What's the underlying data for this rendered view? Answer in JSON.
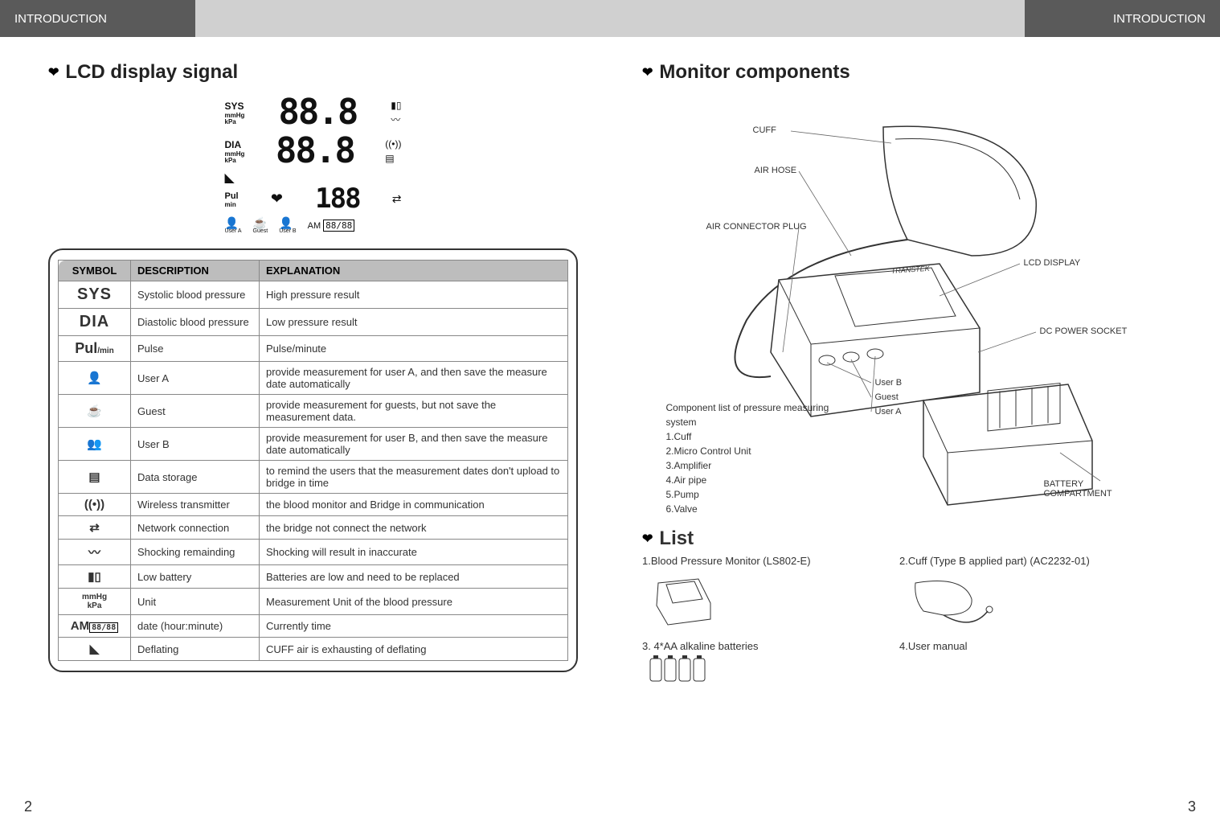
{
  "header": {
    "left": "INTRODUCTION",
    "right": "INTRODUCTION"
  },
  "left_page": {
    "title": "LCD display signal",
    "lcd": {
      "sys_label": "SYS",
      "sys_unit1": "mmHg",
      "sys_unit2": "kPa",
      "sys_digits": "88.8",
      "dia_label": "DIA",
      "dia_unit1": "mmHg",
      "dia_unit2": "kPa",
      "dia_digits": "88.8",
      "pul_label": "Pul",
      "pul_unit": "min",
      "pul_digits": "188",
      "userA": "User A",
      "guest": "Guest",
      "userB": "User B",
      "time_tag": "AM",
      "time_digits": "88/88",
      "time_m": "M",
      "time_d": "D"
    },
    "table": {
      "headers": [
        "SYMBOL",
        "DESCRIPTION",
        "EXPLANATION"
      ],
      "rows": [
        {
          "symbol_text": "SYS",
          "symbol_style": "bold22",
          "desc": "Systolic blood pressure",
          "expl": "High pressure result"
        },
        {
          "symbol_text": "DIA",
          "symbol_style": "bold22",
          "desc": "Diastolic blood pressure",
          "expl": "Low pressure result"
        },
        {
          "symbol_text": "Pul/min",
          "symbol_style": "boldmix",
          "desc": "Pulse",
          "expl": "Pulse/minute"
        },
        {
          "symbol_icon": "user-a",
          "desc": "User A",
          "expl": "provide measurement for user A, and then save the measure date automatically"
        },
        {
          "symbol_icon": "guest",
          "desc": "Guest",
          "expl": "provide measurement for guests, but not save the measurement data."
        },
        {
          "symbol_icon": "user-b",
          "desc": "User B",
          "expl": "provide measurement for user B, and then save the measure date automatically"
        },
        {
          "symbol_icon": "storage",
          "desc": "Data storage",
          "expl": "to remind the users that the measurement dates don't upload to bridge in time"
        },
        {
          "symbol_icon": "wireless",
          "desc": "Wireless transmitter",
          "expl": "the blood monitor and Bridge in communication"
        },
        {
          "symbol_icon": "network",
          "desc": "Network connection",
          "expl": "the bridge not connect the network"
        },
        {
          "symbol_icon": "shock",
          "desc": "Shocking remainding",
          "expl": "Shocking will result in inaccurate"
        },
        {
          "symbol_icon": "battery",
          "desc": "Low battery",
          "expl": "Batteries are low and need to be replaced"
        },
        {
          "symbol_text": "mmHg\nkPa",
          "symbol_style": "unit",
          "desc": "Unit",
          "expl": "Measurement Unit of the blood pressure"
        },
        {
          "symbol_icon": "clock",
          "desc": "date (hour:minute)",
          "expl": "Currently time"
        },
        {
          "symbol_icon": "deflate",
          "desc": "Deflating",
          "expl": "CUFF air is exhausting of deflating"
        }
      ]
    },
    "page_num": "2"
  },
  "right_page": {
    "title": "Monitor components",
    "labels": {
      "cuff": "CUFF",
      "air_hose": "AIR HOSE",
      "air_connector": "AIR CONNECTOR PLUG",
      "lcd_display": "LCD DISPLAY",
      "dc_power": "DC POWER SOCKET",
      "user_b": "User B",
      "guest": "Guest",
      "user_a": "User A",
      "battery_comp": "BATTERY COMPARTMENT",
      "brand": "TRANSTEK"
    },
    "component_list": {
      "heading": "Component list of pressure measuring system",
      "items": [
        "1.Cuff",
        "2.Micro Control Unit",
        "3.Amplifier",
        "4.Air pipe",
        "5.Pump",
        "6.Valve"
      ]
    },
    "list_title": "List",
    "list_items": {
      "i1": "1.Blood Pressure Monitor (LS802-E)",
      "i2": "2.Cuff (Type B applied part) (AC2232-01)",
      "i3": "3. 4*AA alkaline batteries",
      "i4": "4.User manual"
    },
    "page_num": "3"
  },
  "colors": {
    "header_dark": "#5a5a5a",
    "header_light": "#d0d0d0",
    "table_header_bg": "#bdbdbd",
    "border": "#888888",
    "text": "#333333"
  }
}
